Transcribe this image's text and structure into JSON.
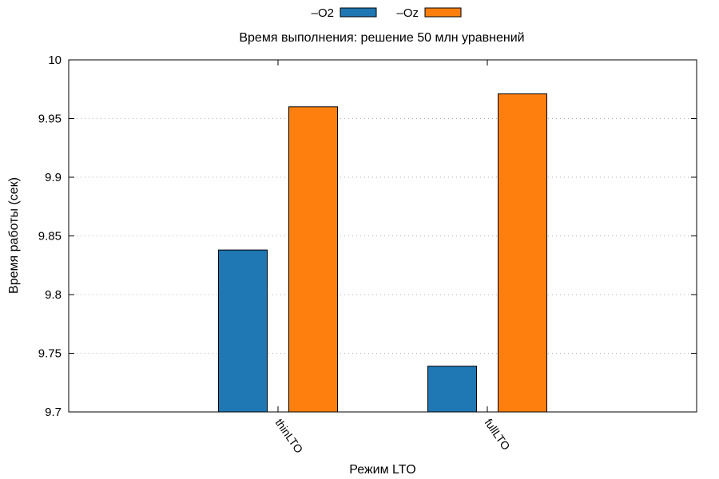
{
  "chart_data": {
    "type": "bar",
    "title": "Время выполнения: решение 50 млн уравнений",
    "xlabel": "Режим LTO",
    "ylabel": "Время работы (сек)",
    "categories": [
      "thinLTO",
      "fullLTO"
    ],
    "series": [
      {
        "name": "–O2",
        "color": "#1f77b4",
        "values": [
          9.838,
          9.739
        ]
      },
      {
        "name": "–Oz",
        "color": "#ff7f0e",
        "values": [
          9.96,
          9.971
        ]
      }
    ],
    "ylim": [
      9.7,
      10
    ],
    "yticks": [
      9.7,
      9.75,
      9.8,
      9.85,
      9.9,
      9.95,
      10
    ],
    "ytick_labels": [
      "9.7",
      "9.75",
      "9.8",
      "9.85",
      "9.9",
      "9.95",
      "10"
    ],
    "grid": "horizontal dotted",
    "legend_position": "top-center"
  }
}
